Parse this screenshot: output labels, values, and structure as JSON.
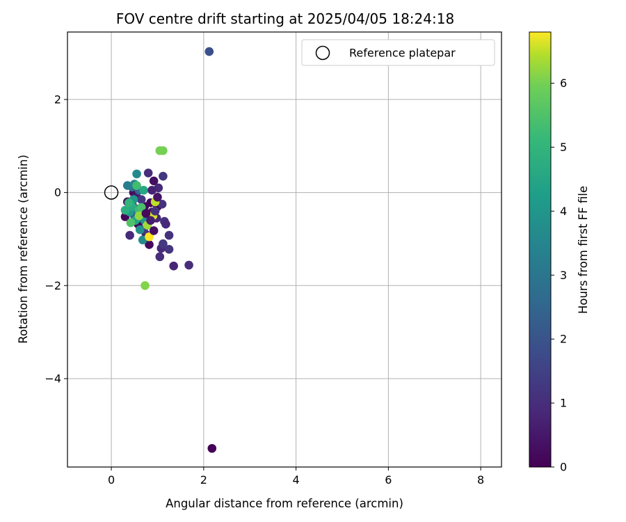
{
  "chart_data": {
    "type": "scatter",
    "title": "FOV centre drift starting at 2025/04/05 18:24:18",
    "xlabel": "Angular distance from reference (arcmin)",
    "ylabel": "Rotation from reference (arcmin)",
    "xlim": [
      -0.95,
      8.45
    ],
    "ylim": [
      -5.9,
      3.45
    ],
    "xticks": [
      0,
      2,
      4,
      6,
      8
    ],
    "xtick_labels": [
      "0",
      "2",
      "4",
      "6",
      "8"
    ],
    "yticks": [
      -4,
      -2,
      0,
      2
    ],
    "ytick_labels": [
      "−4",
      "−2",
      "0",
      "2"
    ],
    "grid": true,
    "legend": {
      "placement": "top-right",
      "entries": [
        "Reference platepar"
      ]
    },
    "colormap": "viridis",
    "colorbar": {
      "label": "Hours from first FF file",
      "range": [
        0,
        6.8
      ],
      "ticks": [
        0,
        1,
        2,
        3,
        4,
        5,
        6
      ],
      "tick_labels": [
        "0",
        "1",
        "2",
        "3",
        "4",
        "5",
        "6"
      ]
    },
    "reference_point": {
      "x": 0,
      "y": 0
    },
    "points": [
      {
        "x": 2.18,
        "y": -5.5,
        "h": 0.05
      },
      {
        "x": 2.12,
        "y": 3.03,
        "h": 1.9
      },
      {
        "x": 0.3,
        "y": -0.52,
        "h": 0.1
      },
      {
        "x": 0.35,
        "y": -0.2,
        "h": 0.2
      },
      {
        "x": 0.45,
        "y": -0.25,
        "h": 0.1
      },
      {
        "x": 0.48,
        "y": 0.0,
        "h": 0.3
      },
      {
        "x": 0.55,
        "y": -0.1,
        "h": 0.5
      },
      {
        "x": 0.58,
        "y": -0.68,
        "h": 0.1
      },
      {
        "x": 0.62,
        "y": -0.45,
        "h": 0.3
      },
      {
        "x": 0.68,
        "y": -0.58,
        "h": 0.2
      },
      {
        "x": 0.72,
        "y": -0.3,
        "h": 0.1
      },
      {
        "x": 0.78,
        "y": -0.7,
        "h": 0.4
      },
      {
        "x": 0.82,
        "y": -1.12,
        "h": 0.2
      },
      {
        "x": 0.85,
        "y": -0.22,
        "h": 0.1
      },
      {
        "x": 0.88,
        "y": -0.42,
        "h": 0.5
      },
      {
        "x": 0.92,
        "y": 0.25,
        "h": 0.3
      },
      {
        "x": 0.95,
        "y": -0.2,
        "h": 0.2
      },
      {
        "x": 0.98,
        "y": -0.55,
        "h": 0.8
      },
      {
        "x": 1.0,
        "y": -0.3,
        "h": 0.1
      },
      {
        "x": 1.02,
        "y": 0.1,
        "h": 0.9
      },
      {
        "x": 1.05,
        "y": -1.38,
        "h": 1.0
      },
      {
        "x": 1.08,
        "y": -1.2,
        "h": 0.9
      },
      {
        "x": 1.1,
        "y": -0.25,
        "h": 1.1
      },
      {
        "x": 1.12,
        "y": 0.35,
        "h": 1.2
      },
      {
        "x": 1.12,
        "y": -1.1,
        "h": 1.3
      },
      {
        "x": 1.15,
        "y": -0.62,
        "h": 1.1
      },
      {
        "x": 1.18,
        "y": -0.68,
        "h": 0.9
      },
      {
        "x": 1.25,
        "y": -0.92,
        "h": 1.1
      },
      {
        "x": 1.25,
        "y": -1.22,
        "h": 1.2
      },
      {
        "x": 1.35,
        "y": -1.58,
        "h": 0.8
      },
      {
        "x": 1.68,
        "y": -1.56,
        "h": 1.0
      },
      {
        "x": 0.8,
        "y": 0.42,
        "h": 1.0
      },
      {
        "x": 0.75,
        "y": -0.9,
        "h": 0.7
      },
      {
        "x": 0.7,
        "y": -0.8,
        "h": 1.3
      },
      {
        "x": 0.65,
        "y": -0.15,
        "h": 1.2
      },
      {
        "x": 0.4,
        "y": -0.92,
        "h": 0.9
      },
      {
        "x": 0.5,
        "y": -0.5,
        "h": 2.2
      },
      {
        "x": 0.6,
        "y": 0.05,
        "h": 2.6
      },
      {
        "x": 0.55,
        "y": -0.35,
        "h": 2.8
      },
      {
        "x": 0.45,
        "y": 0.12,
        "h": 3.0
      },
      {
        "x": 0.35,
        "y": 0.15,
        "h": 3.2
      },
      {
        "x": 0.5,
        "y": 0.18,
        "h": 3.5
      },
      {
        "x": 0.55,
        "y": 0.4,
        "h": 3.6
      },
      {
        "x": 0.58,
        "y": -0.55,
        "h": 3.4
      },
      {
        "x": 0.62,
        "y": -0.8,
        "h": 3.8
      },
      {
        "x": 0.68,
        "y": -1.02,
        "h": 3.7
      },
      {
        "x": 0.72,
        "y": -0.6,
        "h": 3.9
      },
      {
        "x": 0.48,
        "y": -0.15,
        "h": 4.0
      },
      {
        "x": 0.4,
        "y": -0.42,
        "h": 4.2
      },
      {
        "x": 0.52,
        "y": -0.6,
        "h": 4.5
      },
      {
        "x": 0.45,
        "y": -0.3,
        "h": 4.7
      },
      {
        "x": 0.3,
        "y": -0.38,
        "h": 4.8
      },
      {
        "x": 0.38,
        "y": -0.22,
        "h": 5.0
      },
      {
        "x": 0.6,
        "y": -0.38,
        "h": 5.2
      },
      {
        "x": 0.65,
        "y": -0.32,
        "h": 5.4
      },
      {
        "x": 0.42,
        "y": -0.65,
        "h": 5.5
      },
      {
        "x": 0.55,
        "y": 0.15,
        "h": 5.3
      },
      {
        "x": 0.7,
        "y": 0.05,
        "h": 4.6
      },
      {
        "x": 1.05,
        "y": 0.9,
        "h": 6.0
      },
      {
        "x": 1.12,
        "y": 0.9,
        "h": 6.0
      },
      {
        "x": 0.73,
        "y": -2.0,
        "h": 6.1
      },
      {
        "x": 0.78,
        "y": -0.7,
        "h": 6.3
      },
      {
        "x": 0.82,
        "y": -0.95,
        "h": 6.8
      },
      {
        "x": 0.9,
        "y": -0.5,
        "h": 6.6
      },
      {
        "x": 0.95,
        "y": -0.2,
        "h": 6.5
      },
      {
        "x": 0.6,
        "y": -0.5,
        "h": 6.2
      },
      {
        "x": 0.85,
        "y": -0.6,
        "h": 0.6
      },
      {
        "x": 0.92,
        "y": -0.82,
        "h": 0.3
      },
      {
        "x": 0.75,
        "y": -0.45,
        "h": 0.15
      },
      {
        "x": 0.88,
        "y": 0.05,
        "h": 0.7
      },
      {
        "x": 1.0,
        "y": -0.1,
        "h": 0.4
      },
      {
        "x": 0.95,
        "y": -0.4,
        "h": 1.1
      }
    ]
  }
}
